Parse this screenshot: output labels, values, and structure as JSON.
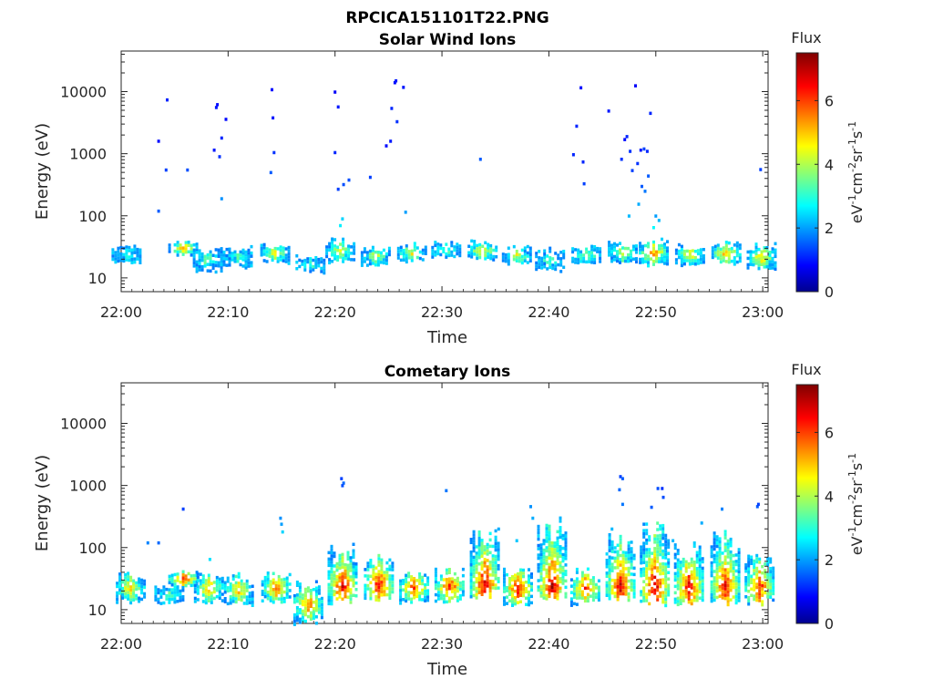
{
  "figure": {
    "title": "RPCICA151101T22.PNG"
  },
  "chart_data": [
    {
      "type": "heatmap",
      "title": "Solar Wind Ions",
      "xlabel": "Time",
      "ylabel": "Energy (eV)",
      "x_range": [
        "22:00",
        "23:00"
      ],
      "x_ticks": [
        "22:00",
        "22:10",
        "22:20",
        "22:30",
        "22:40",
        "22:50",
        "23:00"
      ],
      "y_scale": "log",
      "ylim": [
        6,
        45000
      ],
      "y_ticks": [
        10,
        100,
        1000,
        10000
      ],
      "y_tick_labels": [
        "10",
        "100",
        "1000",
        "10000"
      ],
      "colorbar": {
        "title": "Flux",
        "unit": "eV-1cm-2sr-1s-1",
        "range": [
          0,
          7.5
        ],
        "ticks": [
          "0",
          "2",
          "4",
          "6"
        ]
      },
      "grid": false,
      "bursts": [
        {
          "t": 0.4,
          "emin": 18,
          "emax": 35,
          "peak": 3.5
        },
        {
          "t": 5.7,
          "emin": 24,
          "emax": 42,
          "peak": 5.5
        },
        {
          "t": 8.0,
          "emin": 13,
          "emax": 32,
          "peak": 3.8
        },
        {
          "t": 10.8,
          "emin": 15,
          "emax": 35,
          "peak": 3.3
        },
        {
          "t": 14.3,
          "emin": 18,
          "emax": 40,
          "peak": 4.8
        },
        {
          "t": 17.6,
          "emin": 12,
          "emax": 25,
          "peak": 3.5
        },
        {
          "t": 20.4,
          "emin": 18,
          "emax": 45,
          "peak": 4.6
        },
        {
          "t": 23.7,
          "emin": 16,
          "emax": 35,
          "peak": 4.5
        },
        {
          "t": 27.1,
          "emin": 18,
          "emax": 40,
          "peak": 4.8
        },
        {
          "t": 30.3,
          "emin": 22,
          "emax": 40,
          "peak": 3.8
        },
        {
          "t": 33.7,
          "emin": 20,
          "emax": 42,
          "peak": 5.0
        },
        {
          "t": 36.9,
          "emin": 17,
          "emax": 35,
          "peak": 4.6
        },
        {
          "t": 40.0,
          "emin": 13,
          "emax": 32,
          "peak": 3.6
        },
        {
          "t": 43.4,
          "emin": 17,
          "emax": 35,
          "peak": 4.2
        },
        {
          "t": 46.8,
          "emin": 18,
          "emax": 40,
          "peak": 4.8
        },
        {
          "t": 49.7,
          "emin": 16,
          "emax": 45,
          "peak": 5.6
        },
        {
          "t": 53.1,
          "emin": 16,
          "emax": 38,
          "peak": 5.0
        },
        {
          "t": 56.5,
          "emin": 17,
          "emax": 40,
          "peak": 5.6
        },
        {
          "t": 59.8,
          "emin": 14,
          "emax": 38,
          "peak": 5.2
        }
      ],
      "sparse": [
        [
          3.5,
          1600,
          1.0
        ],
        [
          4.2,
          550,
          1.4
        ],
        [
          4.3,
          7400,
          1.2
        ],
        [
          3.5,
          120,
          1.6
        ],
        [
          6.2,
          550,
          1.5
        ],
        [
          8.7,
          1150,
          1.1
        ],
        [
          8.9,
          5600,
          1.1
        ],
        [
          9.0,
          6200,
          1.0
        ],
        [
          9.2,
          900,
          1.3
        ],
        [
          9.4,
          1800,
          1.2
        ],
        [
          9.8,
          3600,
          1.0
        ],
        [
          9.4,
          190,
          2.0
        ],
        [
          14.0,
          500,
          1.6
        ],
        [
          14.1,
          10800,
          1.0
        ],
        [
          14.2,
          3800,
          1.1
        ],
        [
          14.3,
          1050,
          1.3
        ],
        [
          20.0,
          9900,
          0.9
        ],
        [
          20.0,
          1050,
          1.2
        ],
        [
          20.3,
          5700,
          1.1
        ],
        [
          20.3,
          270,
          1.4
        ],
        [
          20.8,
          320,
          1.5
        ],
        [
          21.3,
          380,
          1.5
        ],
        [
          23.3,
          420,
          1.4
        ],
        [
          24.8,
          1350,
          1.0
        ],
        [
          25.2,
          1600,
          1.1
        ],
        [
          25.3,
          5400,
          1.2
        ],
        [
          25.6,
          14000,
          1.0
        ],
        [
          25.7,
          15000,
          1.1
        ],
        [
          25.8,
          3300,
          1.3
        ],
        [
          26.4,
          11800,
          1.1
        ],
        [
          26.6,
          115,
          2.1
        ],
        [
          33.6,
          820,
          1.6
        ],
        [
          42.3,
          970,
          1.2
        ],
        [
          42.6,
          2800,
          1.2
        ],
        [
          43.0,
          11600,
          1.0
        ],
        [
          43.2,
          740,
          1.2
        ],
        [
          43.3,
          330,
          1.4
        ],
        [
          45.6,
          4900,
          1.1
        ],
        [
          46.8,
          820,
          1.3
        ],
        [
          47.1,
          1700,
          1.0
        ],
        [
          47.3,
          1900,
          1.2
        ],
        [
          47.6,
          1100,
          1.3
        ],
        [
          47.8,
          540,
          1.4
        ],
        [
          48.1,
          12500,
          0.9
        ],
        [
          48.3,
          700,
          1.3
        ],
        [
          48.6,
          1150,
          1.1
        ],
        [
          48.7,
          300,
          1.6
        ],
        [
          48.9,
          1200,
          1.4
        ],
        [
          49.0,
          250,
          1.8
        ],
        [
          49.2,
          1100,
          1.2
        ],
        [
          49.3,
          440,
          1.6
        ],
        [
          49.5,
          4500,
          1.2
        ],
        [
          48.4,
          155,
          2.2
        ],
        [
          47.5,
          100,
          2.3
        ],
        [
          50.3,
          85,
          2.3
        ],
        [
          50.0,
          100,
          2.1
        ],
        [
          59.8,
          560,
          1.4
        ],
        [
          20.5,
          70,
          2.7
        ],
        [
          20.7,
          90,
          2.5
        ],
        [
          49.8,
          65,
          2.8
        ]
      ]
    },
    {
      "type": "heatmap",
      "title": "Cometary Ions",
      "xlabel": "Time",
      "ylabel": "Energy (eV)",
      "x_range": [
        "22:00",
        "23:00"
      ],
      "x_ticks": [
        "22:00",
        "22:10",
        "22:20",
        "22:30",
        "22:40",
        "22:50",
        "23:00"
      ],
      "y_scale": "log",
      "ylim": [
        6,
        45000
      ],
      "y_ticks": [
        10,
        100,
        1000,
        10000
      ],
      "y_tick_labels": [
        "10",
        "100",
        "1000",
        "10000"
      ],
      "colorbar": {
        "title": "Flux",
        "unit": "eV-1cm-2sr-1s-1",
        "range": [
          0,
          7.5
        ],
        "ticks": [
          "0",
          "2",
          "4",
          "6"
        ]
      },
      "grid": false,
      "bursts": [
        {
          "t": 0.8,
          "emin": 13,
          "emax": 42,
          "peak": 5.2
        },
        {
          "t": 4.4,
          "emin": 13,
          "emax": 25,
          "peak": 4.0
        },
        {
          "t": 5.7,
          "emin": 24,
          "emax": 45,
          "peak": 6.8
        },
        {
          "t": 8.1,
          "emin": 13,
          "emax": 42,
          "peak": 5.5
        },
        {
          "t": 10.9,
          "emin": 12,
          "emax": 42,
          "peak": 5.3
        },
        {
          "t": 14.4,
          "emin": 13,
          "emax": 42,
          "peak": 6.2
        },
        {
          "t": 17.4,
          "emin": 6,
          "emax": 30,
          "peak": 6.0
        },
        {
          "t": 20.6,
          "emin": 12,
          "emax": 120,
          "peak": 7.0
        },
        {
          "t": 24.0,
          "emin": 14,
          "emax": 90,
          "peak": 7.0
        },
        {
          "t": 27.3,
          "emin": 13,
          "emax": 45,
          "peak": 6.4
        },
        {
          "t": 30.6,
          "emin": 13,
          "emax": 48,
          "peak": 6.6
        },
        {
          "t": 33.9,
          "emin": 15,
          "emax": 250,
          "peak": 7.2
        },
        {
          "t": 37.0,
          "emin": 11,
          "emax": 48,
          "peak": 7.0
        },
        {
          "t": 40.2,
          "emin": 13,
          "emax": 350,
          "peak": 7.0
        },
        {
          "t": 43.3,
          "emin": 12,
          "emax": 48,
          "peak": 6.6
        },
        {
          "t": 46.6,
          "emin": 13,
          "emax": 200,
          "peak": 7.0
        },
        {
          "t": 49.8,
          "emin": 12,
          "emax": 280,
          "peak": 7.3
        },
        {
          "t": 53.0,
          "emin": 11,
          "emax": 150,
          "peak": 7.0
        },
        {
          "t": 56.4,
          "emin": 12,
          "emax": 200,
          "peak": 6.8
        },
        {
          "t": 59.6,
          "emin": 12,
          "emax": 90,
          "peak": 6.6
        }
      ],
      "sparse": [
        [
          2.5,
          120,
          1.9
        ],
        [
          3.5,
          120,
          1.7
        ],
        [
          5.8,
          420,
          1.4
        ],
        [
          8.3,
          65,
          2.6
        ],
        [
          14.9,
          300,
          2.0
        ],
        [
          15.1,
          180,
          2.5
        ],
        [
          15.0,
          240,
          2.1
        ],
        [
          20.6,
          1300,
          1.4
        ],
        [
          20.8,
          1100,
          1.7
        ],
        [
          20.7,
          1000,
          1.5
        ],
        [
          30.4,
          830,
          1.8
        ],
        [
          35.3,
          200,
          2.2
        ],
        [
          37.0,
          130,
          2.4
        ],
        [
          38.3,
          460,
          2.0
        ],
        [
          38.5,
          300,
          2.2
        ],
        [
          45.9,
          200,
          2.3
        ],
        [
          46.2,
          100,
          2.6
        ],
        [
          46.7,
          1400,
          1.4
        ],
        [
          46.9,
          1300,
          1.6
        ],
        [
          46.6,
          860,
          1.7
        ],
        [
          46.9,
          500,
          1.8
        ],
        [
          49.6,
          450,
          1.6
        ],
        [
          50.2,
          900,
          1.5
        ],
        [
          50.6,
          900,
          1.3
        ],
        [
          50.7,
          650,
          1.5
        ],
        [
          51.6,
          130,
          2.3
        ],
        [
          54.3,
          250,
          2.2
        ],
        [
          56.2,
          420,
          1.9
        ],
        [
          59.5,
          460,
          1.6
        ],
        [
          59.6,
          500,
          1.4
        ]
      ]
    }
  ]
}
